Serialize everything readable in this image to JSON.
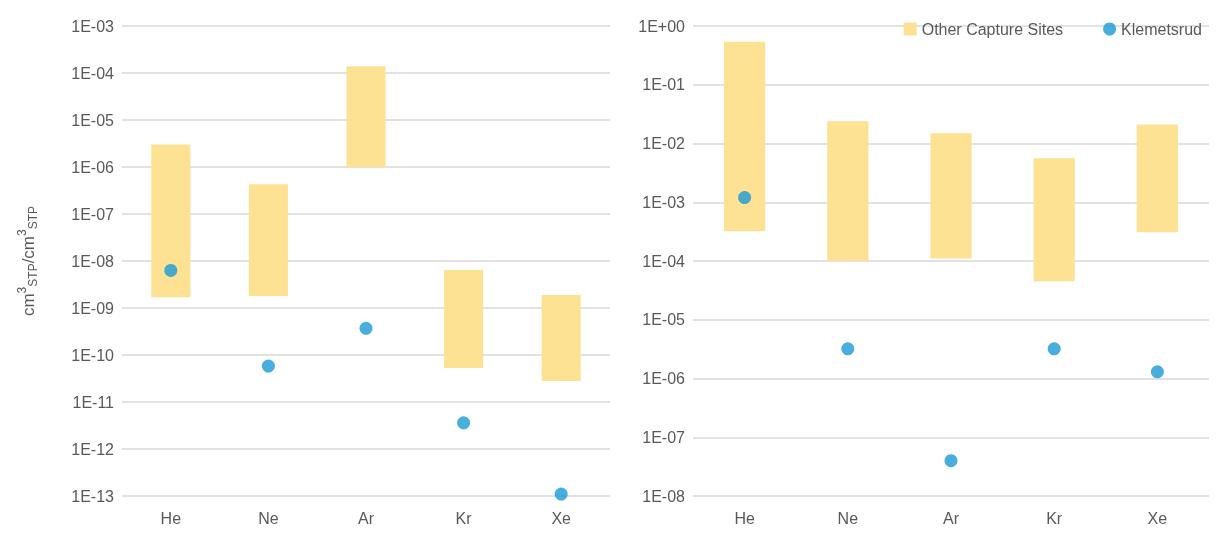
{
  "chart_data": [
    {
      "type": "bar",
      "ylabel": "cm$^{3}$$_{STP}$/cm$^{3}$$_{STP}$",
      "categories": [
        "He",
        "Ne",
        "Ar",
        "Kr",
        "Xe"
      ],
      "log": "y",
      "grid": "y",
      "legend": false,
      "ylim": [
        1e-13,
        0.001
      ],
      "yticks": [
        {
          "value": 1e-13,
          "label": "1E-13"
        },
        {
          "value": 1e-12,
          "label": "1E-12"
        },
        {
          "value": 1e-11,
          "label": "1E-11"
        },
        {
          "value": 1e-10,
          "label": "1E-10"
        },
        {
          "value": 1e-09,
          "label": "1E-09"
        },
        {
          "value": 1e-08,
          "label": "1E-08"
        },
        {
          "value": 1e-07,
          "label": "1E-07"
        },
        {
          "value": 1e-06,
          "label": "1E-06"
        },
        {
          "value": 1e-05,
          "label": "1E-05"
        },
        {
          "value": 0.0001,
          "label": "1E-04"
        },
        {
          "value": 0.001,
          "label": "1E-03"
        }
      ],
      "series": [
        {
          "color": "#fde293",
          "base": [
            1.7e-09,
            1.8e-09,
            1e-06,
            5.3e-11,
            2.8e-11
          ],
          "values": [
            3e-06,
            4.3e-07,
            0.000139,
            6.4e-09,
            1.87e-09
          ]
        },
        {
          "type": "scatter",
          "color": "#1a9ad6",
          "marker": "circle",
          "x": [
            "He",
            "Ne",
            "Ar",
            "Kr",
            "Xe"
          ],
          "values": [
            6.3e-09,
            5.8e-11,
            3.7e-10,
            3.6e-12,
            1.1e-13
          ]
        }
      ]
    },
    {
      "type": "bar",
      "categories": [
        "He",
        "Ne",
        "Ar",
        "Kr",
        "Xe"
      ],
      "log": "y",
      "grid": "y",
      "legend": "top right",
      "ylim": [
        1e-08,
        1
      ],
      "yticks": [
        {
          "value": 1e-08,
          "label": "1E-08"
        },
        {
          "value": 1e-07,
          "label": "1E-07"
        },
        {
          "value": 1e-06,
          "label": "1E-06"
        },
        {
          "value": 1e-05,
          "label": "1E-05"
        },
        {
          "value": 0.0001,
          "label": "1E-04"
        },
        {
          "value": 0.001,
          "label": "1E-03"
        },
        {
          "value": 0.01,
          "label": "1E-02"
        },
        {
          "value": 0.1,
          "label": "1E-01"
        },
        {
          "value": 1,
          "label": "1E+00"
        }
      ],
      "series": [
        {
          "name": "Other Capture Sites",
          "color": "#fde293",
          "base": [
            0.00032,
            0.0001,
            0.00011,
            4.5e-05,
            0.00031
          ],
          "values": [
            0.54,
            0.0239,
            0.0149,
            0.00556,
            0.0207
          ]
        },
        {
          "type": "scatter",
          "name": "Klemetsrud",
          "color": "#1a9ad6",
          "marker": "circle",
          "x": [
            "He",
            "Ne",
            "Ar",
            "Kr",
            "Xe"
          ],
          "values": [
            0.0012,
            3.2e-06,
            4e-08,
            3.2e-06,
            1.3e-06
          ]
        }
      ]
    }
  ]
}
